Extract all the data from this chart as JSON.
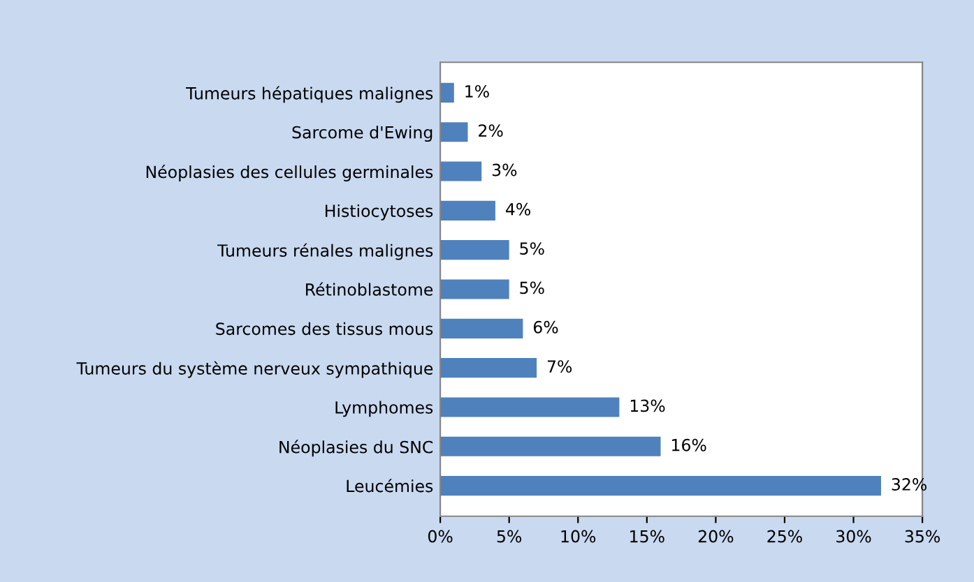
{
  "chart_data": {
    "type": "bar",
    "orientation": "horizontal",
    "categories": [
      "Tumeurs hépatiques malignes",
      "Sarcome d'Ewing",
      "Néoplasies des cellules germinales",
      "Histiocytoses",
      "Tumeurs rénales malignes",
      "Rétinoblastome",
      "Sarcomes des tissus mous",
      "Tumeurs du système nerveux sympathique",
      "Lymphomes",
      "Néoplasies du SNC",
      "Leucémies"
    ],
    "values": [
      1,
      2,
      3,
      4,
      5,
      5,
      6,
      7,
      13,
      16,
      32
    ],
    "value_labels": [
      "1%",
      "2%",
      "3%",
      "4%",
      "5%",
      "5%",
      "6%",
      "7%",
      "13%",
      "16%",
      "32%"
    ],
    "color": "#4f81bd",
    "xlim": [
      0,
      35
    ],
    "xticks": [
      {
        "value": 0,
        "label": "0%"
      },
      {
        "value": 5,
        "label": "5%"
      },
      {
        "value": 10,
        "label": "10%"
      },
      {
        "value": 15,
        "label": "15%"
      },
      {
        "value": 20,
        "label": "20%"
      },
      {
        "value": 25,
        "label": "25%"
      },
      {
        "value": 30,
        "label": "30%"
      },
      {
        "value": 35,
        "label": "35%"
      }
    ],
    "grid": false,
    "legend": false
  }
}
